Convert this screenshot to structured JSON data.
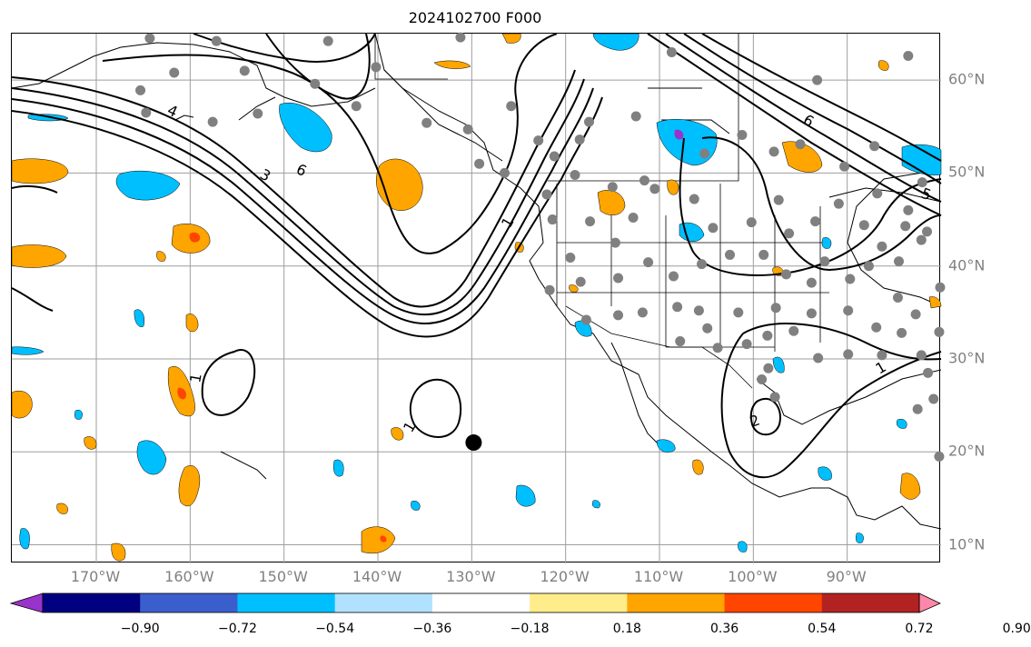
{
  "title": "2024102700 F000",
  "colors": {
    "contour": "#000000",
    "grid": "#9e9e9e",
    "station": "#808080",
    "marker": "#000000",
    "land_border": "#000000"
  },
  "map": {
    "projection": "plate-carree",
    "lon_range": [
      -179,
      -80
    ],
    "lat_range": [
      8,
      65
    ],
    "lon_ticks": [
      {
        "value": -170,
        "label": "170°W"
      },
      {
        "value": -160,
        "label": "160°W"
      },
      {
        "value": -150,
        "label": "150°W"
      },
      {
        "value": -140,
        "label": "140°W"
      },
      {
        "value": -130,
        "label": "130°W"
      },
      {
        "value": -120,
        "label": "120°W"
      },
      {
        "value": -110,
        "label": "110°W"
      },
      {
        "value": -100,
        "label": "100°W"
      },
      {
        "value": -90,
        "label": "90°W"
      }
    ],
    "lat_ticks": [
      {
        "value": 60,
        "label": "60°N"
      },
      {
        "value": 50,
        "label": "50°N"
      },
      {
        "value": 40,
        "label": "40°N"
      },
      {
        "value": 30,
        "label": "30°N"
      },
      {
        "value": 20,
        "label": "20°N"
      },
      {
        "value": 10,
        "label": "10°N"
      }
    ],
    "contour_labels": [
      "1",
      "1",
      "1",
      "1",
      "2",
      "3",
      "4",
      "5",
      "6",
      "6"
    ],
    "marker": {
      "name": "black-dot",
      "lon": -129.8,
      "lat": 21.0
    }
  },
  "colorbar": {
    "colors": [
      "#9933cc",
      "#000080",
      "#3a5fcd",
      "#00bfff",
      "#b0e2ff",
      "#ffffff",
      "#ffec8b",
      "#ffa500",
      "#ff4500",
      "#b22222",
      "#ff88aa"
    ],
    "ticks": [
      "−0.90",
      "−0.72",
      "−0.54",
      "−0.36",
      "−0.18",
      "0.18",
      "0.36",
      "0.54",
      "0.72",
      "0.90"
    ]
  }
}
